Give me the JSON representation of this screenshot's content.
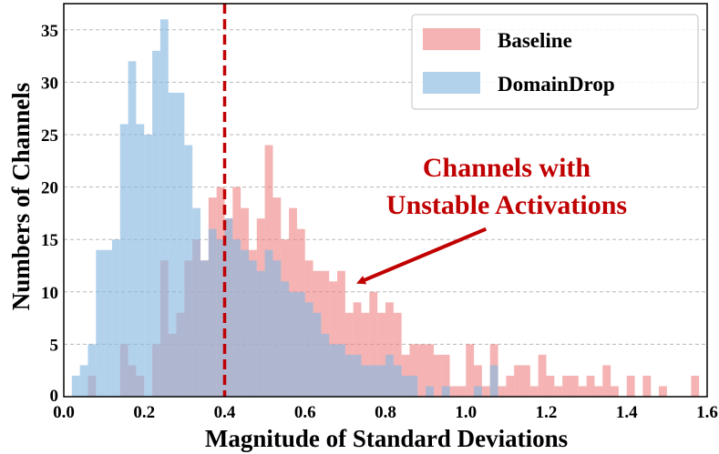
{
  "chart_data": {
    "type": "bar",
    "xlabel": "Magnitude of Standard Deviations",
    "ylabel": "Numbers of Channels",
    "xlim": [
      0.0,
      1.6
    ],
    "ylim": [
      0,
      37.5
    ],
    "xticks": [
      "0.0",
      "0.2",
      "0.4",
      "0.6",
      "0.8",
      "1.0",
      "1.2",
      "1.4",
      "1.6"
    ],
    "yticks": [
      "0",
      "5",
      "10",
      "15",
      "20",
      "25",
      "30",
      "35"
    ],
    "grid": "horizontal dashed",
    "legend_position": "top-right",
    "bin_width": 0.02,
    "series": [
      {
        "name": "Baseline",
        "color": "#ee8081",
        "alpha": 0.6,
        "bins": [
          {
            "x": 0.07,
            "y": 2
          },
          {
            "x": 0.15,
            "y": 5
          },
          {
            "x": 0.17,
            "y": 3
          },
          {
            "x": 0.19,
            "y": 2
          },
          {
            "x": 0.23,
            "y": 5
          },
          {
            "x": 0.25,
            "y": 13
          },
          {
            "x": 0.27,
            "y": 6
          },
          {
            "x": 0.29,
            "y": 8
          },
          {
            "x": 0.31,
            "y": 13
          },
          {
            "x": 0.33,
            "y": 15
          },
          {
            "x": 0.35,
            "y": 13
          },
          {
            "x": 0.37,
            "y": 19
          },
          {
            "x": 0.39,
            "y": 20
          },
          {
            "x": 0.41,
            "y": 17
          },
          {
            "x": 0.43,
            "y": 20
          },
          {
            "x": 0.45,
            "y": 18
          },
          {
            "x": 0.47,
            "y": 14
          },
          {
            "x": 0.49,
            "y": 17
          },
          {
            "x": 0.51,
            "y": 24
          },
          {
            "x": 0.53,
            "y": 19
          },
          {
            "x": 0.55,
            "y": 15
          },
          {
            "x": 0.57,
            "y": 18
          },
          {
            "x": 0.59,
            "y": 16
          },
          {
            "x": 0.61,
            "y": 13
          },
          {
            "x": 0.63,
            "y": 12
          },
          {
            "x": 0.65,
            "y": 12
          },
          {
            "x": 0.67,
            "y": 11
          },
          {
            "x": 0.69,
            "y": 12
          },
          {
            "x": 0.71,
            "y": 8
          },
          {
            "x": 0.73,
            "y": 9
          },
          {
            "x": 0.75,
            "y": 8
          },
          {
            "x": 0.77,
            "y": 10
          },
          {
            "x": 0.79,
            "y": 8
          },
          {
            "x": 0.81,
            "y": 9
          },
          {
            "x": 0.83,
            "y": 8
          },
          {
            "x": 0.85,
            "y": 4
          },
          {
            "x": 0.87,
            "y": 5
          },
          {
            "x": 0.89,
            "y": 5
          },
          {
            "x": 0.91,
            "y": 5
          },
          {
            "x": 0.93,
            "y": 4
          },
          {
            "x": 0.95,
            "y": 4
          },
          {
            "x": 0.97,
            "y": 1
          },
          {
            "x": 0.99,
            "y": 1
          },
          {
            "x": 1.01,
            "y": 5
          },
          {
            "x": 1.03,
            "y": 3
          },
          {
            "x": 1.05,
            "y": 1
          },
          {
            "x": 1.07,
            "y": 5
          },
          {
            "x": 1.09,
            "y": 1
          },
          {
            "x": 1.11,
            "y": 2
          },
          {
            "x": 1.13,
            "y": 3
          },
          {
            "x": 1.15,
            "y": 3
          },
          {
            "x": 1.17,
            "y": 1
          },
          {
            "x": 1.19,
            "y": 4
          },
          {
            "x": 1.21,
            "y": 2
          },
          {
            "x": 1.23,
            "y": 1
          },
          {
            "x": 1.25,
            "y": 2
          },
          {
            "x": 1.27,
            "y": 2
          },
          {
            "x": 1.29,
            "y": 1
          },
          {
            "x": 1.31,
            "y": 2
          },
          {
            "x": 1.33,
            "y": 1
          },
          {
            "x": 1.35,
            "y": 3
          },
          {
            "x": 1.37,
            "y": 1
          },
          {
            "x": 1.41,
            "y": 2
          },
          {
            "x": 1.45,
            "y": 2
          },
          {
            "x": 1.49,
            "y": 1
          },
          {
            "x": 1.57,
            "y": 2
          }
        ]
      },
      {
        "name": "DomainDrop",
        "color": "#89b8e0",
        "alpha": 0.65,
        "bins": [
          {
            "x": 0.03,
            "y": 2
          },
          {
            "x": 0.05,
            "y": 3
          },
          {
            "x": 0.07,
            "y": 5
          },
          {
            "x": 0.09,
            "y": 14
          },
          {
            "x": 0.11,
            "y": 14
          },
          {
            "x": 0.13,
            "y": 15
          },
          {
            "x": 0.15,
            "y": 26
          },
          {
            "x": 0.17,
            "y": 32
          },
          {
            "x": 0.19,
            "y": 26
          },
          {
            "x": 0.21,
            "y": 25
          },
          {
            "x": 0.23,
            "y": 33
          },
          {
            "x": 0.25,
            "y": 36
          },
          {
            "x": 0.27,
            "y": 29
          },
          {
            "x": 0.29,
            "y": 29
          },
          {
            "x": 0.31,
            "y": 24
          },
          {
            "x": 0.33,
            "y": 18
          },
          {
            "x": 0.35,
            "y": 13
          },
          {
            "x": 0.37,
            "y": 16
          },
          {
            "x": 0.39,
            "y": 15
          },
          {
            "x": 0.41,
            "y": 17
          },
          {
            "x": 0.43,
            "y": 15
          },
          {
            "x": 0.45,
            "y": 14
          },
          {
            "x": 0.47,
            "y": 13
          },
          {
            "x": 0.49,
            "y": 12
          },
          {
            "x": 0.51,
            "y": 14
          },
          {
            "x": 0.53,
            "y": 13
          },
          {
            "x": 0.55,
            "y": 11
          },
          {
            "x": 0.57,
            "y": 10
          },
          {
            "x": 0.59,
            "y": 10
          },
          {
            "x": 0.61,
            "y": 9
          },
          {
            "x": 0.63,
            "y": 8
          },
          {
            "x": 0.65,
            "y": 6
          },
          {
            "x": 0.67,
            "y": 5
          },
          {
            "x": 0.69,
            "y": 5
          },
          {
            "x": 0.71,
            "y": 4
          },
          {
            "x": 0.73,
            "y": 4
          },
          {
            "x": 0.75,
            "y": 3
          },
          {
            "x": 0.77,
            "y": 3
          },
          {
            "x": 0.79,
            "y": 3
          },
          {
            "x": 0.81,
            "y": 4
          },
          {
            "x": 0.83,
            "y": 3
          },
          {
            "x": 0.85,
            "y": 2
          },
          {
            "x": 0.87,
            "y": 2
          },
          {
            "x": 0.91,
            "y": 1
          },
          {
            "x": 0.95,
            "y": 1
          },
          {
            "x": 1.03,
            "y": 1
          },
          {
            "x": 1.07,
            "y": 3
          }
        ]
      }
    ],
    "reference_line": {
      "x": 0.4,
      "color": "#c00000",
      "style": "dashed"
    },
    "annotation": {
      "lines": [
        "Channels with",
        "Unstable Activations"
      ],
      "color": "#c00000",
      "arrow_to": {
        "x": 0.74,
        "y": 11
      },
      "arrow_from": {
        "x": 1.05,
        "y": 16
      }
    }
  }
}
